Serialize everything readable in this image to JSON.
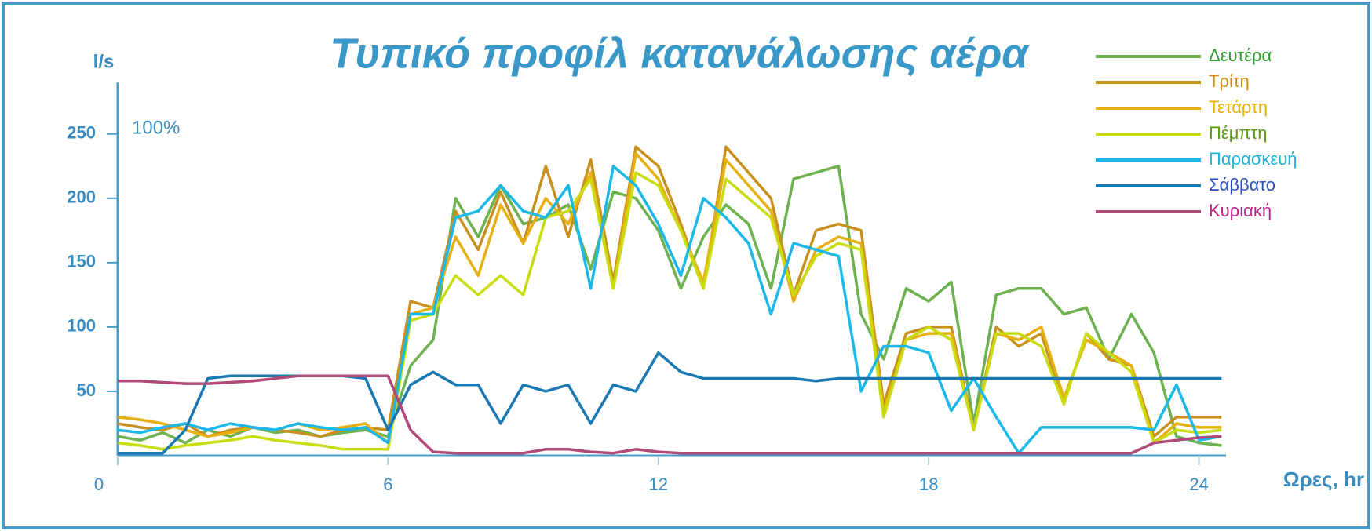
{
  "chart_data": {
    "type": "line",
    "title": "Τυπικό προφίλ κατανάλωσης αέρα",
    "y_label": "l/s",
    "x_label": "Ωρες, hr",
    "annotation": "100%",
    "x": [
      0,
      0.5,
      1,
      1.5,
      2,
      2.5,
      3,
      3.5,
      4,
      4.5,
      5,
      5.5,
      6,
      6.5,
      7,
      7.5,
      8,
      8.5,
      9,
      9.5,
      10,
      10.5,
      11,
      11.5,
      12,
      12.5,
      13,
      13.5,
      14,
      14.5,
      15,
      15.5,
      16,
      16.5,
      17,
      17.5,
      18,
      18.5,
      19,
      19.5,
      20,
      20.5,
      21,
      21.5,
      22,
      22.5,
      23,
      23.5,
      24,
      24.5
    ],
    "series": [
      {
        "name": "Δευτέρα",
        "color": "#6db150",
        "label_color": "#2e9a2e",
        "values": [
          15,
          12,
          18,
          10,
          20,
          15,
          22,
          18,
          20,
          15,
          18,
          20,
          15,
          70,
          90,
          200,
          170,
          210,
          180,
          185,
          195,
          145,
          205,
          200,
          175,
          130,
          170,
          195,
          180,
          130,
          215,
          220,
          225,
          110,
          75,
          130,
          120,
          135,
          25,
          125,
          130,
          130,
          110,
          115,
          75,
          110,
          80,
          15,
          10,
          8
        ]
      },
      {
        "name": "Τρίτη",
        "color": "#c8901e",
        "label_color": "#d08c10",
        "values": [
          25,
          22,
          20,
          25,
          15,
          20,
          22,
          20,
          18,
          15,
          20,
          22,
          20,
          120,
          115,
          190,
          160,
          205,
          165,
          225,
          170,
          230,
          135,
          240,
          225,
          180,
          130,
          240,
          220,
          200,
          125,
          175,
          180,
          175,
          40,
          95,
          100,
          100,
          20,
          100,
          85,
          95,
          40,
          95,
          75,
          70,
          15,
          30,
          30,
          30
        ]
      },
      {
        "name": "Τετάρτη",
        "color": "#e6b010",
        "label_color": "#e8b000",
        "values": [
          30,
          28,
          25,
          20,
          15,
          18,
          22,
          20,
          25,
          20,
          22,
          25,
          10,
          110,
          115,
          170,
          140,
          195,
          165,
          200,
          180,
          220,
          130,
          235,
          215,
          175,
          135,
          230,
          210,
          190,
          120,
          160,
          170,
          165,
          35,
          90,
          95,
          95,
          20,
          95,
          90,
          100,
          45,
          90,
          80,
          70,
          10,
          25,
          22,
          22
        ]
      },
      {
        "name": "Πέμπτη",
        "color": "#c8dc10",
        "label_color": "#5a9a10",
        "values": [
          10,
          8,
          5,
          8,
          10,
          12,
          15,
          12,
          10,
          8,
          5,
          5,
          5,
          105,
          110,
          140,
          125,
          140,
          125,
          185,
          190,
          215,
          130,
          220,
          210,
          175,
          130,
          215,
          200,
          185,
          125,
          155,
          165,
          160,
          30,
          90,
          100,
          90,
          20,
          95,
          95,
          85,
          40,
          95,
          80,
          65,
          10,
          20,
          18,
          20
        ]
      },
      {
        "name": "Παρασκευή",
        "color": "#1cb8ea",
        "label_color": "#20b0d8",
        "values": [
          20,
          18,
          22,
          25,
          20,
          25,
          22,
          20,
          25,
          22,
          20,
          22,
          10,
          110,
          110,
          185,
          190,
          210,
          190,
          185,
          210,
          130,
          225,
          210,
          180,
          140,
          200,
          185,
          165,
          110,
          165,
          160,
          155,
          50,
          85,
          85,
          80,
          35,
          60,
          30,
          2,
          22,
          22,
          22,
          22,
          22,
          20,
          55,
          12,
          15
        ]
      },
      {
        "name": "Σάββατο",
        "color": "#1a78b2",
        "label_color": "#2a50c0",
        "values": [
          2,
          2,
          2,
          20,
          60,
          62,
          62,
          62,
          62,
          62,
          62,
          60,
          20,
          55,
          65,
          55,
          55,
          25,
          55,
          50,
          55,
          25,
          55,
          50,
          80,
          65,
          60,
          60,
          60,
          60,
          60,
          58,
          60,
          60,
          60,
          60,
          60,
          60,
          60,
          60,
          60,
          60,
          60,
          60,
          60,
          60,
          60,
          60,
          60,
          60
        ]
      },
      {
        "name": "Κυριακή",
        "color": "#b04a78",
        "label_color": "#c0208a",
        "values": [
          58,
          58,
          57,
          56,
          56,
          57,
          58,
          60,
          62,
          62,
          62,
          62,
          62,
          20,
          3,
          2,
          2,
          2,
          2,
          5,
          5,
          3,
          2,
          5,
          3,
          2,
          2,
          2,
          2,
          2,
          2,
          2,
          2,
          2,
          2,
          2,
          2,
          2,
          2,
          2,
          2,
          2,
          2,
          2,
          2,
          2,
          10,
          12,
          14,
          15
        ]
      }
    ],
    "xlim": [
      0,
      24.6
    ],
    "xticks": [
      0,
      6,
      12,
      18,
      24
    ],
    "ylim": [
      0,
      290
    ],
    "yticks": [
      50,
      100,
      150,
      200,
      250
    ],
    "grid": false,
    "legend": "top-right"
  }
}
